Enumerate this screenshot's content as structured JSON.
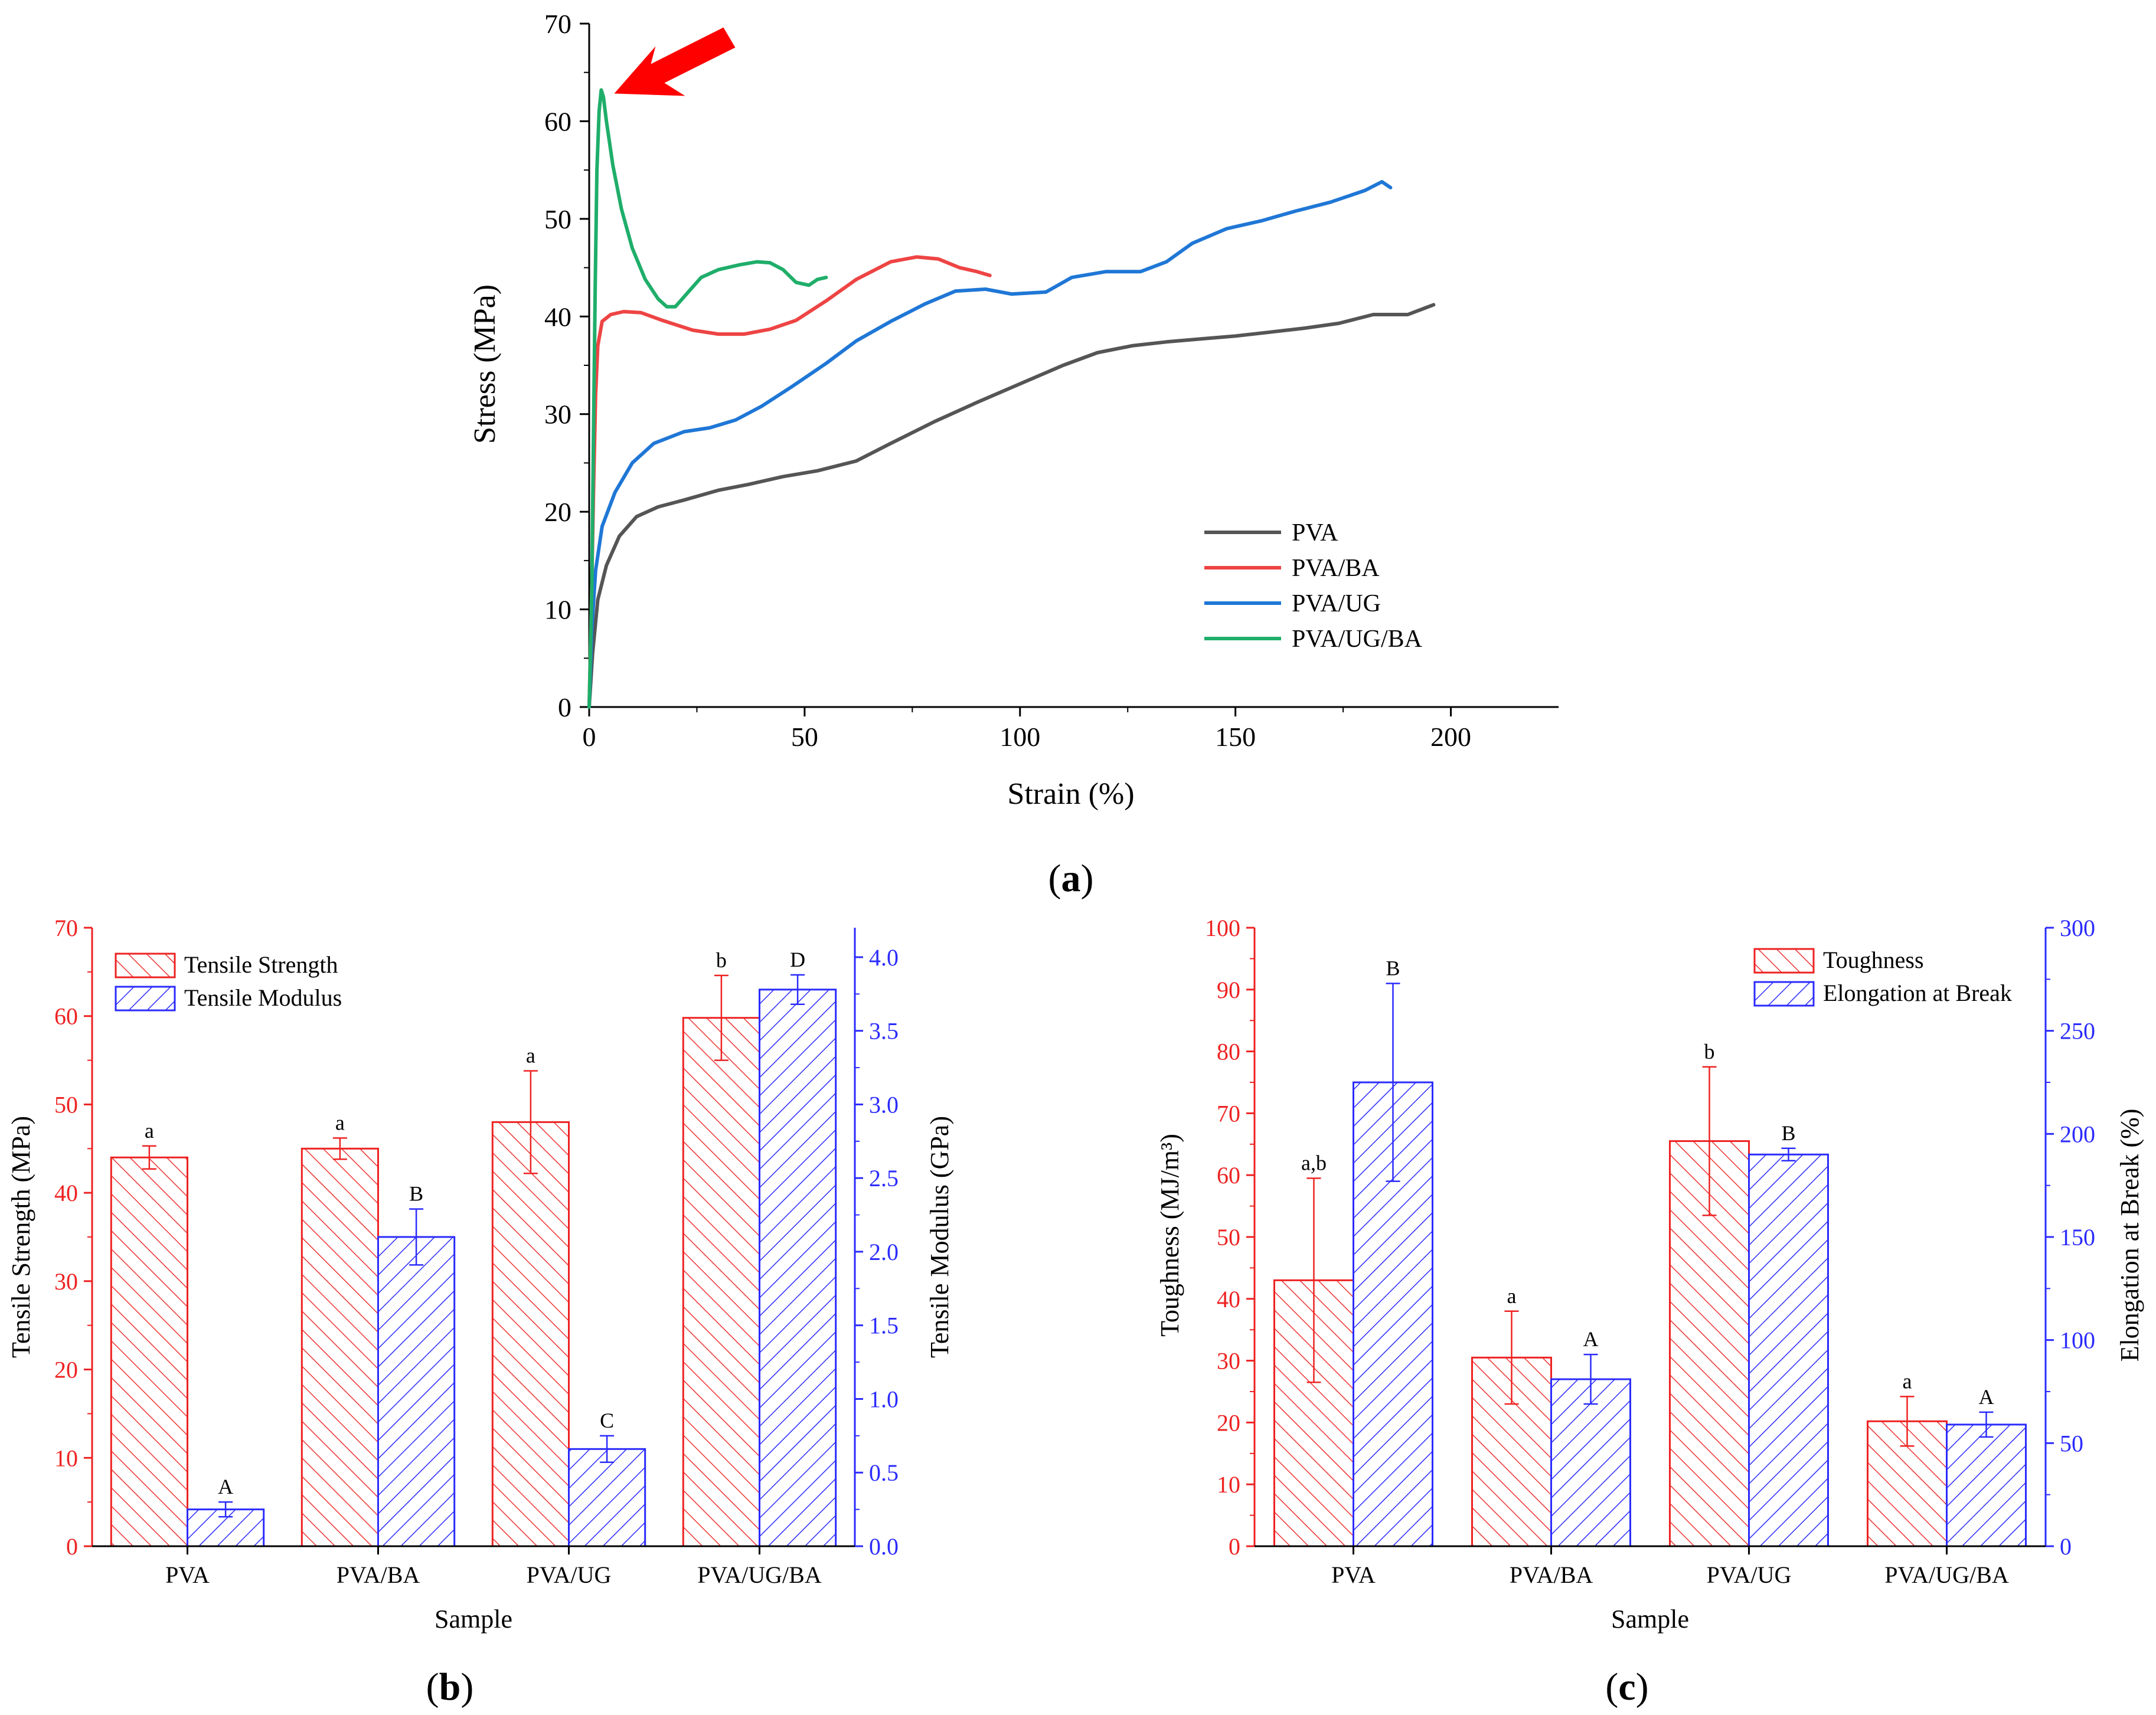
{
  "colors": {
    "pva": "#555555",
    "pva_ba": "#ee4444",
    "pva_ug": "#1f77d6",
    "pva_ug_ba": "#1fae6a",
    "red_axis": "#ee2222",
    "blue_axis": "#2b2bff",
    "arrow": "#ff0000"
  },
  "chart_data": [
    {
      "id": "a",
      "type": "line",
      "panel_label": "a",
      "title": "",
      "xlabel": "Strain (%)",
      "ylabel": "Stress (MPa)",
      "xlim": [
        0,
        225
      ],
      "ylim": [
        0,
        70
      ],
      "xticks": [
        0,
        50,
        100,
        150,
        200
      ],
      "yticks": [
        0,
        10,
        20,
        30,
        40,
        50,
        60,
        70
      ],
      "grid": false,
      "legend_position": "bottom-right",
      "annotation": "red arrow pointing at PVA/UG/BA yield peak",
      "annotation_target": {
        "x": 2.8,
        "y": 63.2
      },
      "series": [
        {
          "name": "PVA",
          "color_key": "pva",
          "points": [
            [
              0,
              0
            ],
            [
              0.8,
              5.5
            ],
            [
              2,
              11
            ],
            [
              4,
              14.5
            ],
            [
              7,
              17.5
            ],
            [
              11,
              19.5
            ],
            [
              16,
              20.5
            ],
            [
              22,
              21.2
            ],
            [
              30,
              22.2
            ],
            [
              37,
              22.8
            ],
            [
              45,
              23.6
            ],
            [
              53,
              24.2
            ],
            [
              62,
              25.2
            ],
            [
              70,
              27
            ],
            [
              80,
              29.2
            ],
            [
              90,
              31.2
            ],
            [
              100,
              33.1
            ],
            [
              110,
              35
            ],
            [
              118,
              36.3
            ],
            [
              126,
              37
            ],
            [
              134,
              37.4
            ],
            [
              142,
              37.7
            ],
            [
              150,
              38
            ],
            [
              158,
              38.4
            ],
            [
              166,
              38.8
            ],
            [
              174,
              39.3
            ],
            [
              182,
              40.2
            ],
            [
              190,
              40.2
            ],
            [
              196,
              41.2
            ]
          ]
        },
        {
          "name": "PVA/BA",
          "color_key": "pva_ba",
          "points": [
            [
              0,
              0
            ],
            [
              0.5,
              10
            ],
            [
              1,
              22
            ],
            [
              1.5,
              32
            ],
            [
              2,
              37
            ],
            [
              3,
              39.5
            ],
            [
              5,
              40.2
            ],
            [
              8,
              40.5
            ],
            [
              12,
              40.4
            ],
            [
              17,
              39.6
            ],
            [
              24,
              38.6
            ],
            [
              30,
              38.2
            ],
            [
              36,
              38.2
            ],
            [
              42,
              38.7
            ],
            [
              48,
              39.6
            ],
            [
              55,
              41.6
            ],
            [
              62,
              43.8
            ],
            [
              70,
              45.6
            ],
            [
              76,
              46.1
            ],
            [
              81,
              45.9
            ],
            [
              86,
              45
            ],
            [
              90,
              44.6
            ],
            [
              93,
              44.2
            ]
          ]
        },
        {
          "name": "PVA/UG",
          "color_key": "pva_ug",
          "points": [
            [
              0,
              0
            ],
            [
              0.6,
              8
            ],
            [
              1.5,
              14
            ],
            [
              3,
              18.5
            ],
            [
              6,
              22
            ],
            [
              10,
              25
            ],
            [
              15,
              27
            ],
            [
              22,
              28.2
            ],
            [
              28,
              28.6
            ],
            [
              34,
              29.4
            ],
            [
              40,
              30.8
            ],
            [
              47,
              32.8
            ],
            [
              55,
              35.2
            ],
            [
              62,
              37.5
            ],
            [
              70,
              39.5
            ],
            [
              78,
              41.3
            ],
            [
              85,
              42.6
            ],
            [
              92,
              42.8
            ],
            [
              98,
              42.3
            ],
            [
              106,
              42.5
            ],
            [
              112,
              44
            ],
            [
              120,
              44.6
            ],
            [
              128,
              44.6
            ],
            [
              134,
              45.6
            ],
            [
              140,
              47.5
            ],
            [
              148,
              49
            ],
            [
              156,
              49.8
            ],
            [
              164,
              50.8
            ],
            [
              172,
              51.7
            ],
            [
              180,
              52.9
            ],
            [
              184,
              53.8
            ],
            [
              186,
              53.2
            ]
          ]
        },
        {
          "name": "PVA/UG/BA",
          "color_key": "pva_ug_ba",
          "points": [
            [
              0,
              0
            ],
            [
              0.6,
              12
            ],
            [
              1,
              28
            ],
            [
              1.4,
              43
            ],
            [
              1.8,
              55
            ],
            [
              2.3,
              61
            ],
            [
              2.8,
              63.2
            ],
            [
              3.3,
              62.5
            ],
            [
              4,
              60
            ],
            [
              5.5,
              55.5
            ],
            [
              7.5,
              51
            ],
            [
              10,
              47
            ],
            [
              13,
              43.8
            ],
            [
              16,
              41.8
            ],
            [
              18,
              41
            ],
            [
              20,
              41
            ],
            [
              23,
              42.5
            ],
            [
              26,
              44
            ],
            [
              30,
              44.8
            ],
            [
              35,
              45.3
            ],
            [
              39,
              45.6
            ],
            [
              42,
              45.5
            ],
            [
              45,
              44.8
            ],
            [
              48,
              43.5
            ],
            [
              51,
              43.2
            ],
            [
              53,
              43.8
            ],
            [
              55,
              44
            ]
          ]
        }
      ]
    },
    {
      "id": "b",
      "type": "bar",
      "panel_label": "b",
      "title": "",
      "xlabel": "Sample",
      "ylabel": "Tensile Strength (MPa)",
      "y2label": "Tensile Modulus (GPa)",
      "categories": [
        "PVA",
        "PVA/BA",
        "PVA/UG",
        "PVA/UG/BA"
      ],
      "ylim": [
        0,
        70
      ],
      "yticks": [
        0,
        10,
        20,
        30,
        40,
        50,
        60,
        70
      ],
      "y2lim": [
        0,
        4.2
      ],
      "y2ticks": [
        "0.0",
        "0.5",
        "1.0",
        "1.5",
        "2.0",
        "2.5",
        "3.0",
        "3.5",
        "4.0"
      ],
      "legend_position": "top-left",
      "series": [
        {
          "name": "Tensile Strength",
          "axis": "left",
          "color_key": "red_axis",
          "values": [
            44,
            45,
            48,
            59.8
          ],
          "errors": [
            1.3,
            1.2,
            5.8,
            4.8
          ],
          "labels": [
            "a",
            "a",
            "a",
            "b"
          ]
        },
        {
          "name": "Tensile Modulus",
          "axis": "right",
          "color_key": "blue_axis",
          "values": [
            0.25,
            2.1,
            0.66,
            3.78
          ],
          "errors": [
            0.05,
            0.19,
            0.09,
            0.1
          ],
          "labels": [
            "A",
            "B",
            "C",
            "D"
          ]
        }
      ]
    },
    {
      "id": "c",
      "type": "bar",
      "panel_label": "c",
      "title": "",
      "xlabel": "Sample",
      "ylabel": "Toughness (MJ/m³)",
      "y2label": "Elongation at Break (%)",
      "categories": [
        "PVA",
        "PVA/BA",
        "PVA/UG",
        "PVA/UG/BA"
      ],
      "ylim": [
        0,
        100
      ],
      "yticks": [
        0,
        10,
        20,
        30,
        40,
        50,
        60,
        70,
        80,
        90,
        100
      ],
      "y2lim": [
        0,
        300
      ],
      "y2ticks": [
        0,
        50,
        100,
        150,
        200,
        250,
        300
      ],
      "legend_position": "top-right",
      "series": [
        {
          "name": "Toughness",
          "axis": "left",
          "color_key": "red_axis",
          "values": [
            43,
            30.5,
            65.5,
            20.2
          ],
          "errors": [
            16.5,
            7.5,
            12,
            4
          ],
          "labels": [
            "a,b",
            "a",
            "b",
            "a"
          ]
        },
        {
          "name": "Elongation at Break",
          "axis": "right",
          "color_key": "blue_axis",
          "values": [
            225,
            81,
            190,
            59
          ],
          "errors": [
            48,
            12,
            3,
            6
          ],
          "labels": [
            "B",
            "A",
            "B",
            "A"
          ]
        }
      ]
    }
  ]
}
